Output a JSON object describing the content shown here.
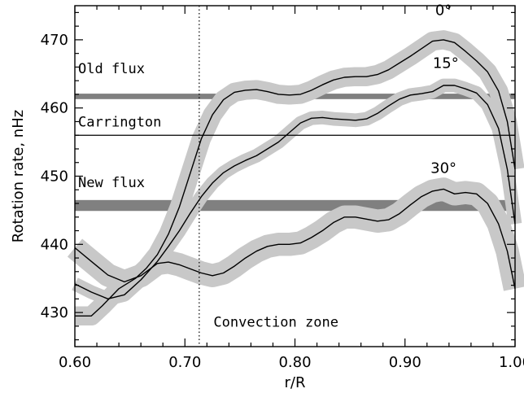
{
  "chart_data": {
    "type": "line",
    "title": "",
    "xlabel": "r/R",
    "ylabel": "Rotation rate, nHz",
    "xlim": [
      0.6,
      1.0
    ],
    "ylim": [
      425,
      475
    ],
    "xticks": [
      0.6,
      0.7,
      0.8,
      0.9,
      1.0
    ],
    "xtick_labels": [
      "0.60",
      "0.70",
      "0.80",
      "0.90",
      "1.00"
    ],
    "yticks": [
      430,
      440,
      450,
      460,
      470
    ],
    "ytick_labels": [
      "430",
      "440",
      "450",
      "460",
      "470"
    ],
    "grid": false,
    "legend": "none",
    "series": [
      {
        "name": "0°",
        "label_at": [
          0.935,
          473.6
        ],
        "x": [
          0.6,
          0.615,
          0.625,
          0.64,
          0.655,
          0.665,
          0.675,
          0.685,
          0.695,
          0.705,
          0.715,
          0.725,
          0.735,
          0.745,
          0.755,
          0.765,
          0.775,
          0.785,
          0.795,
          0.805,
          0.815,
          0.825,
          0.835,
          0.845,
          0.855,
          0.865,
          0.875,
          0.885,
          0.895,
          0.905,
          0.915,
          0.925,
          0.935,
          0.945,
          0.955,
          0.965,
          0.975,
          0.985,
          0.993,
          1.0
        ],
        "y": [
          429.5,
          429.5,
          431.0,
          433.5,
          435.0,
          436.5,
          438.5,
          441.5,
          445.5,
          450.5,
          455.5,
          459.0,
          461.2,
          462.3,
          462.6,
          462.7,
          462.4,
          462.0,
          461.9,
          462.0,
          462.6,
          463.4,
          464.1,
          464.5,
          464.6,
          464.6,
          464.9,
          465.6,
          466.6,
          467.6,
          468.7,
          469.8,
          470.0,
          469.6,
          468.3,
          466.9,
          465.3,
          462.5,
          458.0,
          451.0
        ],
        "band_halfwidth": 1.4
      },
      {
        "name": "15°",
        "label_at": [
          0.937,
          465.9
        ],
        "x": [
          0.6,
          0.615,
          0.63,
          0.645,
          0.66,
          0.675,
          0.685,
          0.695,
          0.705,
          0.715,
          0.725,
          0.735,
          0.745,
          0.755,
          0.765,
          0.775,
          0.785,
          0.795,
          0.805,
          0.815,
          0.825,
          0.835,
          0.845,
          0.855,
          0.865,
          0.875,
          0.885,
          0.895,
          0.905,
          0.915,
          0.925,
          0.935,
          0.945,
          0.955,
          0.965,
          0.975,
          0.985,
          0.993,
          1.0
        ],
        "y": [
          434.2,
          433.0,
          432.0,
          432.6,
          434.8,
          437.5,
          439.7,
          442.0,
          444.6,
          447.0,
          449.0,
          450.5,
          451.5,
          452.3,
          453.0,
          454.0,
          455.0,
          456.4,
          457.8,
          458.5,
          458.6,
          458.4,
          458.3,
          458.2,
          458.4,
          459.2,
          460.3,
          461.3,
          461.9,
          462.1,
          462.4,
          463.3,
          463.3,
          462.8,
          462.2,
          460.5,
          457.0,
          451.0,
          443.0
        ],
        "band_halfwidth": 1.0
      },
      {
        "name": "30°",
        "label_at": [
          0.935,
          450.5
        ],
        "x": [
          0.6,
          0.615,
          0.63,
          0.645,
          0.66,
          0.675,
          0.685,
          0.695,
          0.705,
          0.715,
          0.725,
          0.735,
          0.745,
          0.755,
          0.765,
          0.775,
          0.785,
          0.795,
          0.805,
          0.815,
          0.825,
          0.835,
          0.845,
          0.855,
          0.865,
          0.875,
          0.885,
          0.895,
          0.905,
          0.915,
          0.925,
          0.935,
          0.945,
          0.955,
          0.965,
          0.975,
          0.985,
          0.993,
          1.0
        ],
        "y": [
          439.5,
          437.5,
          435.5,
          434.5,
          435.4,
          437.2,
          437.4,
          437.0,
          436.4,
          435.8,
          435.4,
          435.8,
          436.8,
          438.0,
          439.0,
          439.7,
          440.0,
          440.0,
          440.2,
          441.0,
          442.0,
          443.2,
          444.0,
          444.0,
          443.7,
          443.4,
          443.6,
          444.5,
          445.8,
          447.0,
          447.8,
          448.1,
          447.4,
          447.6,
          447.4,
          446.0,
          443.0,
          439.0,
          433.5
        ],
        "band_halfwidth": 1.7
      }
    ],
    "reference_lines": [
      {
        "label": "Carrington",
        "y": 456.0,
        "label_at": [
          0.603,
          457.3
        ]
      }
    ],
    "bands": [
      {
        "label": "Old flux",
        "y0": 461.3,
        "y1": 462.1,
        "label_at": [
          0.603,
          465.1
        ]
      },
      {
        "label": "New flux",
        "y0": 444.9,
        "y1": 446.5,
        "label_at": [
          0.603,
          448.4
        ]
      }
    ],
    "vertical_markers": [
      {
        "label": "Convection zone",
        "x": 0.713,
        "label_at": [
          0.726,
          427.9
        ]
      }
    ]
  },
  "colors": {
    "uncertainty_band": "#c8c8c8",
    "flux_band": "#808080",
    "line": "#000000"
  }
}
